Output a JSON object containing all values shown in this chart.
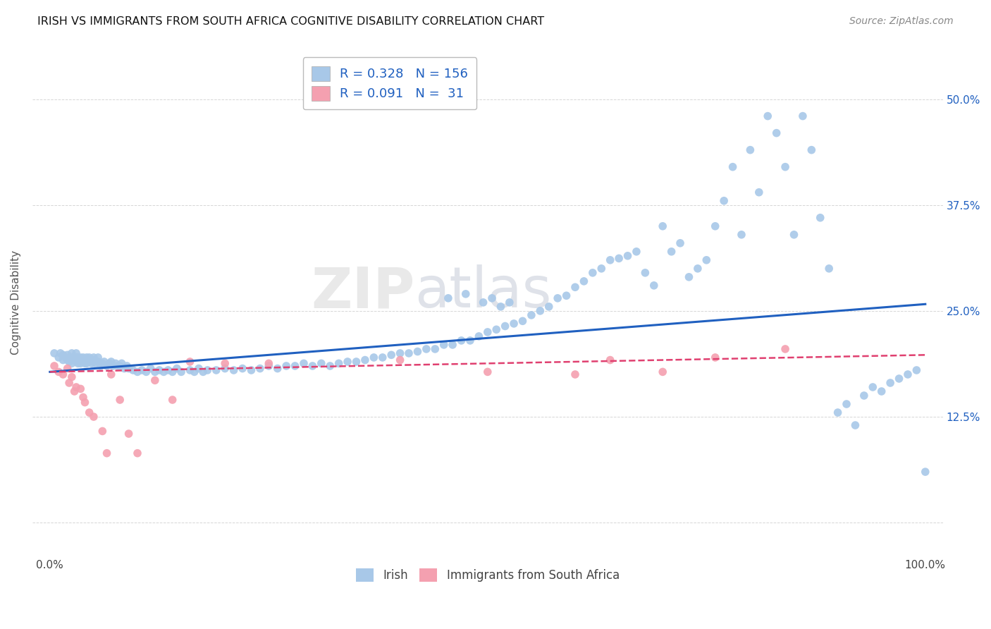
{
  "title": "IRISH VS IMMIGRANTS FROM SOUTH AFRICA COGNITIVE DISABILITY CORRELATION CHART",
  "source": "Source: ZipAtlas.com",
  "xlabel": "",
  "ylabel": "Cognitive Disability",
  "xlim": [
    -0.02,
    1.02
  ],
  "ylim": [
    -0.04,
    0.56
  ],
  "ytick_positions": [
    0.0,
    0.125,
    0.25,
    0.375,
    0.5
  ],
  "ytick_labels": [
    "",
    "12.5%",
    "25.0%",
    "37.5%",
    "50.0%"
  ],
  "irish_R": 0.328,
  "irish_N": 156,
  "sa_R": 0.091,
  "sa_N": 31,
  "irish_color": "#a8c8e8",
  "sa_color": "#f4a0b0",
  "irish_line_color": "#2060c0",
  "sa_line_color": "#e04070",
  "watermark_line1": "ZIP",
  "watermark_line2": "atlas",
  "irish_trend_y_start": 0.178,
  "irish_trend_y_end": 0.258,
  "sa_trend_y_start": 0.178,
  "sa_trend_y_end": 0.198,
  "irish_scatter_x": [
    0.005,
    0.01,
    0.012,
    0.015,
    0.015,
    0.018,
    0.02,
    0.02,
    0.022,
    0.022,
    0.025,
    0.025,
    0.025,
    0.028,
    0.028,
    0.03,
    0.03,
    0.03,
    0.032,
    0.032,
    0.035,
    0.035,
    0.035,
    0.038,
    0.038,
    0.04,
    0.04,
    0.042,
    0.042,
    0.045,
    0.045,
    0.048,
    0.05,
    0.05,
    0.052,
    0.055,
    0.055,
    0.058,
    0.06,
    0.062,
    0.065,
    0.068,
    0.07,
    0.072,
    0.075,
    0.078,
    0.08,
    0.082,
    0.085,
    0.088,
    0.09,
    0.095,
    0.1,
    0.105,
    0.11,
    0.115,
    0.12,
    0.125,
    0.13,
    0.135,
    0.14,
    0.145,
    0.15,
    0.16,
    0.165,
    0.17,
    0.175,
    0.18,
    0.19,
    0.2,
    0.21,
    0.22,
    0.23,
    0.24,
    0.25,
    0.26,
    0.27,
    0.28,
    0.29,
    0.3,
    0.31,
    0.32,
    0.33,
    0.34,
    0.35,
    0.36,
    0.37,
    0.38,
    0.39,
    0.4,
    0.41,
    0.42,
    0.43,
    0.44,
    0.45,
    0.46,
    0.47,
    0.48,
    0.49,
    0.5,
    0.51,
    0.52,
    0.53,
    0.54,
    0.55,
    0.56,
    0.57,
    0.58,
    0.59,
    0.6,
    0.61,
    0.62,
    0.63,
    0.64,
    0.65,
    0.66,
    0.67,
    0.68,
    0.69,
    0.7,
    0.71,
    0.72,
    0.73,
    0.74,
    0.75,
    0.76,
    0.77,
    0.78,
    0.79,
    0.8,
    0.81,
    0.82,
    0.83,
    0.84,
    0.85,
    0.86,
    0.87,
    0.88,
    0.89,
    0.9,
    0.91,
    0.92,
    0.93,
    0.94,
    0.95,
    0.96,
    0.97,
    0.98,
    0.99,
    1.0,
    0.455,
    0.475,
    0.495,
    0.505,
    0.515,
    0.525
  ],
  "irish_scatter_y": [
    0.2,
    0.195,
    0.2,
    0.192,
    0.198,
    0.195,
    0.192,
    0.198,
    0.19,
    0.195,
    0.188,
    0.195,
    0.2,
    0.192,
    0.195,
    0.19,
    0.195,
    0.2,
    0.188,
    0.195,
    0.192,
    0.188,
    0.195,
    0.19,
    0.195,
    0.188,
    0.192,
    0.195,
    0.188,
    0.19,
    0.195,
    0.188,
    0.192,
    0.195,
    0.188,
    0.19,
    0.195,
    0.185,
    0.188,
    0.19,
    0.185,
    0.188,
    0.19,
    0.185,
    0.188,
    0.185,
    0.185,
    0.188,
    0.182,
    0.185,
    0.182,
    0.18,
    0.178,
    0.18,
    0.178,
    0.182,
    0.178,
    0.18,
    0.178,
    0.18,
    0.178,
    0.182,
    0.178,
    0.18,
    0.178,
    0.182,
    0.178,
    0.18,
    0.18,
    0.182,
    0.18,
    0.182,
    0.18,
    0.182,
    0.185,
    0.182,
    0.185,
    0.185,
    0.188,
    0.185,
    0.188,
    0.185,
    0.188,
    0.19,
    0.19,
    0.192,
    0.195,
    0.195,
    0.198,
    0.2,
    0.2,
    0.202,
    0.205,
    0.205,
    0.21,
    0.21,
    0.215,
    0.215,
    0.22,
    0.225,
    0.228,
    0.232,
    0.235,
    0.238,
    0.245,
    0.25,
    0.255,
    0.265,
    0.268,
    0.278,
    0.285,
    0.295,
    0.3,
    0.31,
    0.312,
    0.315,
    0.32,
    0.295,
    0.28,
    0.35,
    0.32,
    0.33,
    0.29,
    0.3,
    0.31,
    0.35,
    0.38,
    0.42,
    0.34,
    0.44,
    0.39,
    0.48,
    0.46,
    0.42,
    0.34,
    0.48,
    0.44,
    0.36,
    0.3,
    0.13,
    0.14,
    0.115,
    0.15,
    0.16,
    0.155,
    0.165,
    0.17,
    0.175,
    0.18,
    0.06,
    0.265,
    0.27,
    0.26,
    0.265,
    0.255,
    0.26
  ],
  "sa_scatter_x": [
    0.005,
    0.01,
    0.015,
    0.02,
    0.022,
    0.025,
    0.028,
    0.03,
    0.035,
    0.038,
    0.04,
    0.045,
    0.05,
    0.06,
    0.065,
    0.07,
    0.08,
    0.09,
    0.1,
    0.12,
    0.14,
    0.16,
    0.2,
    0.25,
    0.4,
    0.5,
    0.6,
    0.64,
    0.7,
    0.76,
    0.84
  ],
  "sa_scatter_y": [
    0.185,
    0.178,
    0.175,
    0.182,
    0.165,
    0.172,
    0.155,
    0.16,
    0.158,
    0.148,
    0.142,
    0.13,
    0.125,
    0.108,
    0.082,
    0.175,
    0.145,
    0.105,
    0.082,
    0.168,
    0.145,
    0.19,
    0.188,
    0.188,
    0.192,
    0.178,
    0.175,
    0.192,
    0.178,
    0.195,
    0.205
  ]
}
